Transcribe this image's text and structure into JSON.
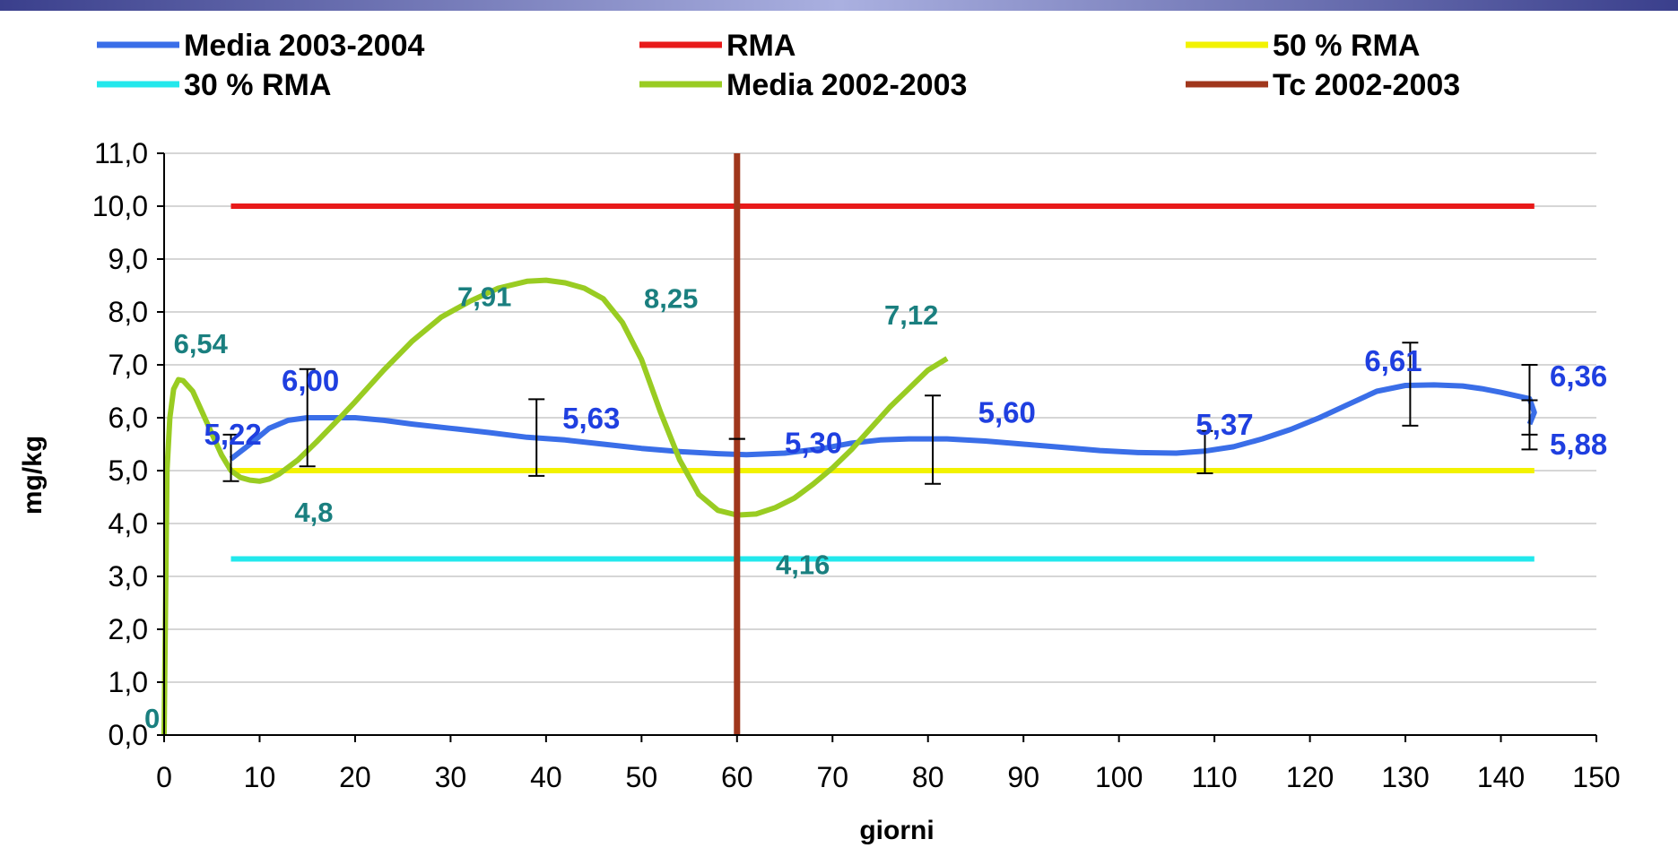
{
  "chart_data": {
    "type": "line",
    "xlabel": "giorni",
    "ylabel": "mg/kg",
    "xlim": [
      0,
      150
    ],
    "ylim": [
      0,
      11
    ],
    "x_ticks": [
      "0",
      "10",
      "20",
      "30",
      "40",
      "50",
      "60",
      "70",
      "80",
      "90",
      "100",
      "110",
      "120",
      "130",
      "140",
      "150"
    ],
    "y_ticks": [
      "0,0",
      "1,0",
      "2,0",
      "3,0",
      "4,0",
      "5,0",
      "6,0",
      "7,0",
      "8,0",
      "9,0",
      "10,0",
      "11,0"
    ],
    "grid": "horizontal",
    "legend_position": "top",
    "series": [
      {
        "name": "Media 2003-2004",
        "color": "#3a6ee8",
        "x": [
          7,
          9,
          11,
          13,
          15,
          17,
          20,
          23,
          26,
          30,
          34,
          38,
          42,
          46,
          50,
          54,
          58,
          61,
          65,
          69,
          72,
          75,
          78,
          82,
          86,
          90,
          94,
          98,
          102,
          106,
          109,
          112,
          115,
          118,
          121,
          124,
          127,
          130,
          133,
          136,
          138,
          140,
          142,
          143,
          143.5,
          143
        ],
        "y": [
          5.22,
          5.5,
          5.8,
          5.95,
          6.0,
          6.0,
          6.0,
          5.95,
          5.88,
          5.8,
          5.72,
          5.63,
          5.58,
          5.5,
          5.42,
          5.36,
          5.32,
          5.3,
          5.33,
          5.42,
          5.52,
          5.58,
          5.6,
          5.6,
          5.56,
          5.5,
          5.44,
          5.38,
          5.34,
          5.33,
          5.37,
          5.45,
          5.6,
          5.78,
          6.0,
          6.25,
          6.5,
          6.61,
          6.62,
          6.6,
          6.55,
          6.48,
          6.4,
          6.36,
          6.1,
          5.88
        ]
      },
      {
        "name": "RMA",
        "color": "#e81a1a",
        "x": [
          7,
          143.5
        ],
        "y": [
          10,
          10
        ]
      },
      {
        "name": "50 % RMA",
        "color": "#f2f200",
        "x": [
          7,
          143.5
        ],
        "y": [
          5,
          5
        ]
      },
      {
        "name": "30 % RMA",
        "color": "#22e8ec",
        "x": [
          7,
          143.5
        ],
        "y": [
          3.33,
          3.33
        ]
      },
      {
        "name": "Media 2002-2003",
        "color": "#99cc22",
        "x": [
          0,
          0.3,
          0.6,
          1,
          1.5,
          2,
          3,
          4,
          5,
          6,
          7,
          8,
          9,
          10,
          11,
          12,
          14,
          16,
          18,
          20,
          23,
          26,
          29,
          32,
          35,
          38,
          40,
          42,
          44,
          46,
          48,
          50,
          52,
          54,
          56,
          58,
          60,
          62,
          64,
          66,
          68,
          70,
          72,
          74,
          76,
          78,
          80,
          82
        ],
        "y": [
          0,
          5.0,
          6.0,
          6.54,
          6.72,
          6.7,
          6.5,
          6.1,
          5.7,
          5.3,
          5.0,
          4.87,
          4.82,
          4.8,
          4.84,
          4.93,
          5.2,
          5.55,
          5.92,
          6.3,
          6.9,
          7.45,
          7.9,
          8.2,
          8.45,
          8.58,
          8.6,
          8.55,
          8.45,
          8.25,
          7.8,
          7.1,
          6.1,
          5.2,
          4.55,
          4.25,
          4.16,
          4.18,
          4.3,
          4.48,
          4.75,
          5.05,
          5.4,
          5.8,
          6.2,
          6.55,
          6.9,
          7.12
        ]
      },
      {
        "name": "Tc 2002-2003",
        "color": "#a0371c",
        "x": [
          60,
          60
        ],
        "y": [
          0,
          11
        ]
      }
    ],
    "error_bars": [
      {
        "x": 7,
        "low": 4.8,
        "high": 5.68
      },
      {
        "x": 15,
        "low": 5.08,
        "high": 6.92
      },
      {
        "x": 39,
        "low": 4.9,
        "high": 6.35
      },
      {
        "x": 60,
        "low": 5.6,
        "high": 5.6
      },
      {
        "x": 80.5,
        "low": 4.75,
        "high": 6.42
      },
      {
        "x": 109,
        "low": 4.95,
        "high": 5.75
      },
      {
        "x": 130.5,
        "low": 5.85,
        "high": 7.42
      },
      {
        "x": 143,
        "low": 5.4,
        "high": 7.0
      },
      {
        "x": 143,
        "low": 5.68,
        "high": 6.33
      }
    ],
    "data_labels": [
      {
        "text": "5,22",
        "x": 7,
        "y": 5.22,
        "style": "blue"
      },
      {
        "text": "6,00",
        "x": 17,
        "y": 6.0,
        "style": "blue"
      },
      {
        "text": "5,63",
        "x": 42,
        "y": 5.63,
        "style": "blue"
      },
      {
        "text": "5,30",
        "x": 65,
        "y": 5.3,
        "style": "blue"
      },
      {
        "text": "5,60",
        "x": 86,
        "y": 5.6,
        "style": "blue"
      },
      {
        "text": "5,37",
        "x": 112,
        "y": 5.37,
        "style": "blue"
      },
      {
        "text": "6,61",
        "x": 129,
        "y": 6.61,
        "style": "blue"
      },
      {
        "text": "6,36",
        "x": 150,
        "y": 6.36,
        "style": "blue"
      },
      {
        "text": "5,88",
        "x": 150,
        "y": 5.88,
        "style": "blue"
      },
      {
        "text": "0",
        "x": 0,
        "y": 0,
        "style": "teal"
      },
      {
        "text": "6,54",
        "x": 4,
        "y": 6.54,
        "style": "teal"
      },
      {
        "text": "4,8",
        "x": 16,
        "y": 4.8,
        "style": "teal"
      },
      {
        "text": "7,91",
        "x": 34,
        "y": 7.91,
        "style": "teal"
      },
      {
        "text": "8,25",
        "x": 51,
        "y": 8.25,
        "style": "teal"
      },
      {
        "text": "4,16",
        "x": 65,
        "y": 4.16,
        "style": "teal"
      },
      {
        "text": "7,12",
        "x": 82,
        "y": 7.12,
        "style": "teal"
      }
    ]
  }
}
